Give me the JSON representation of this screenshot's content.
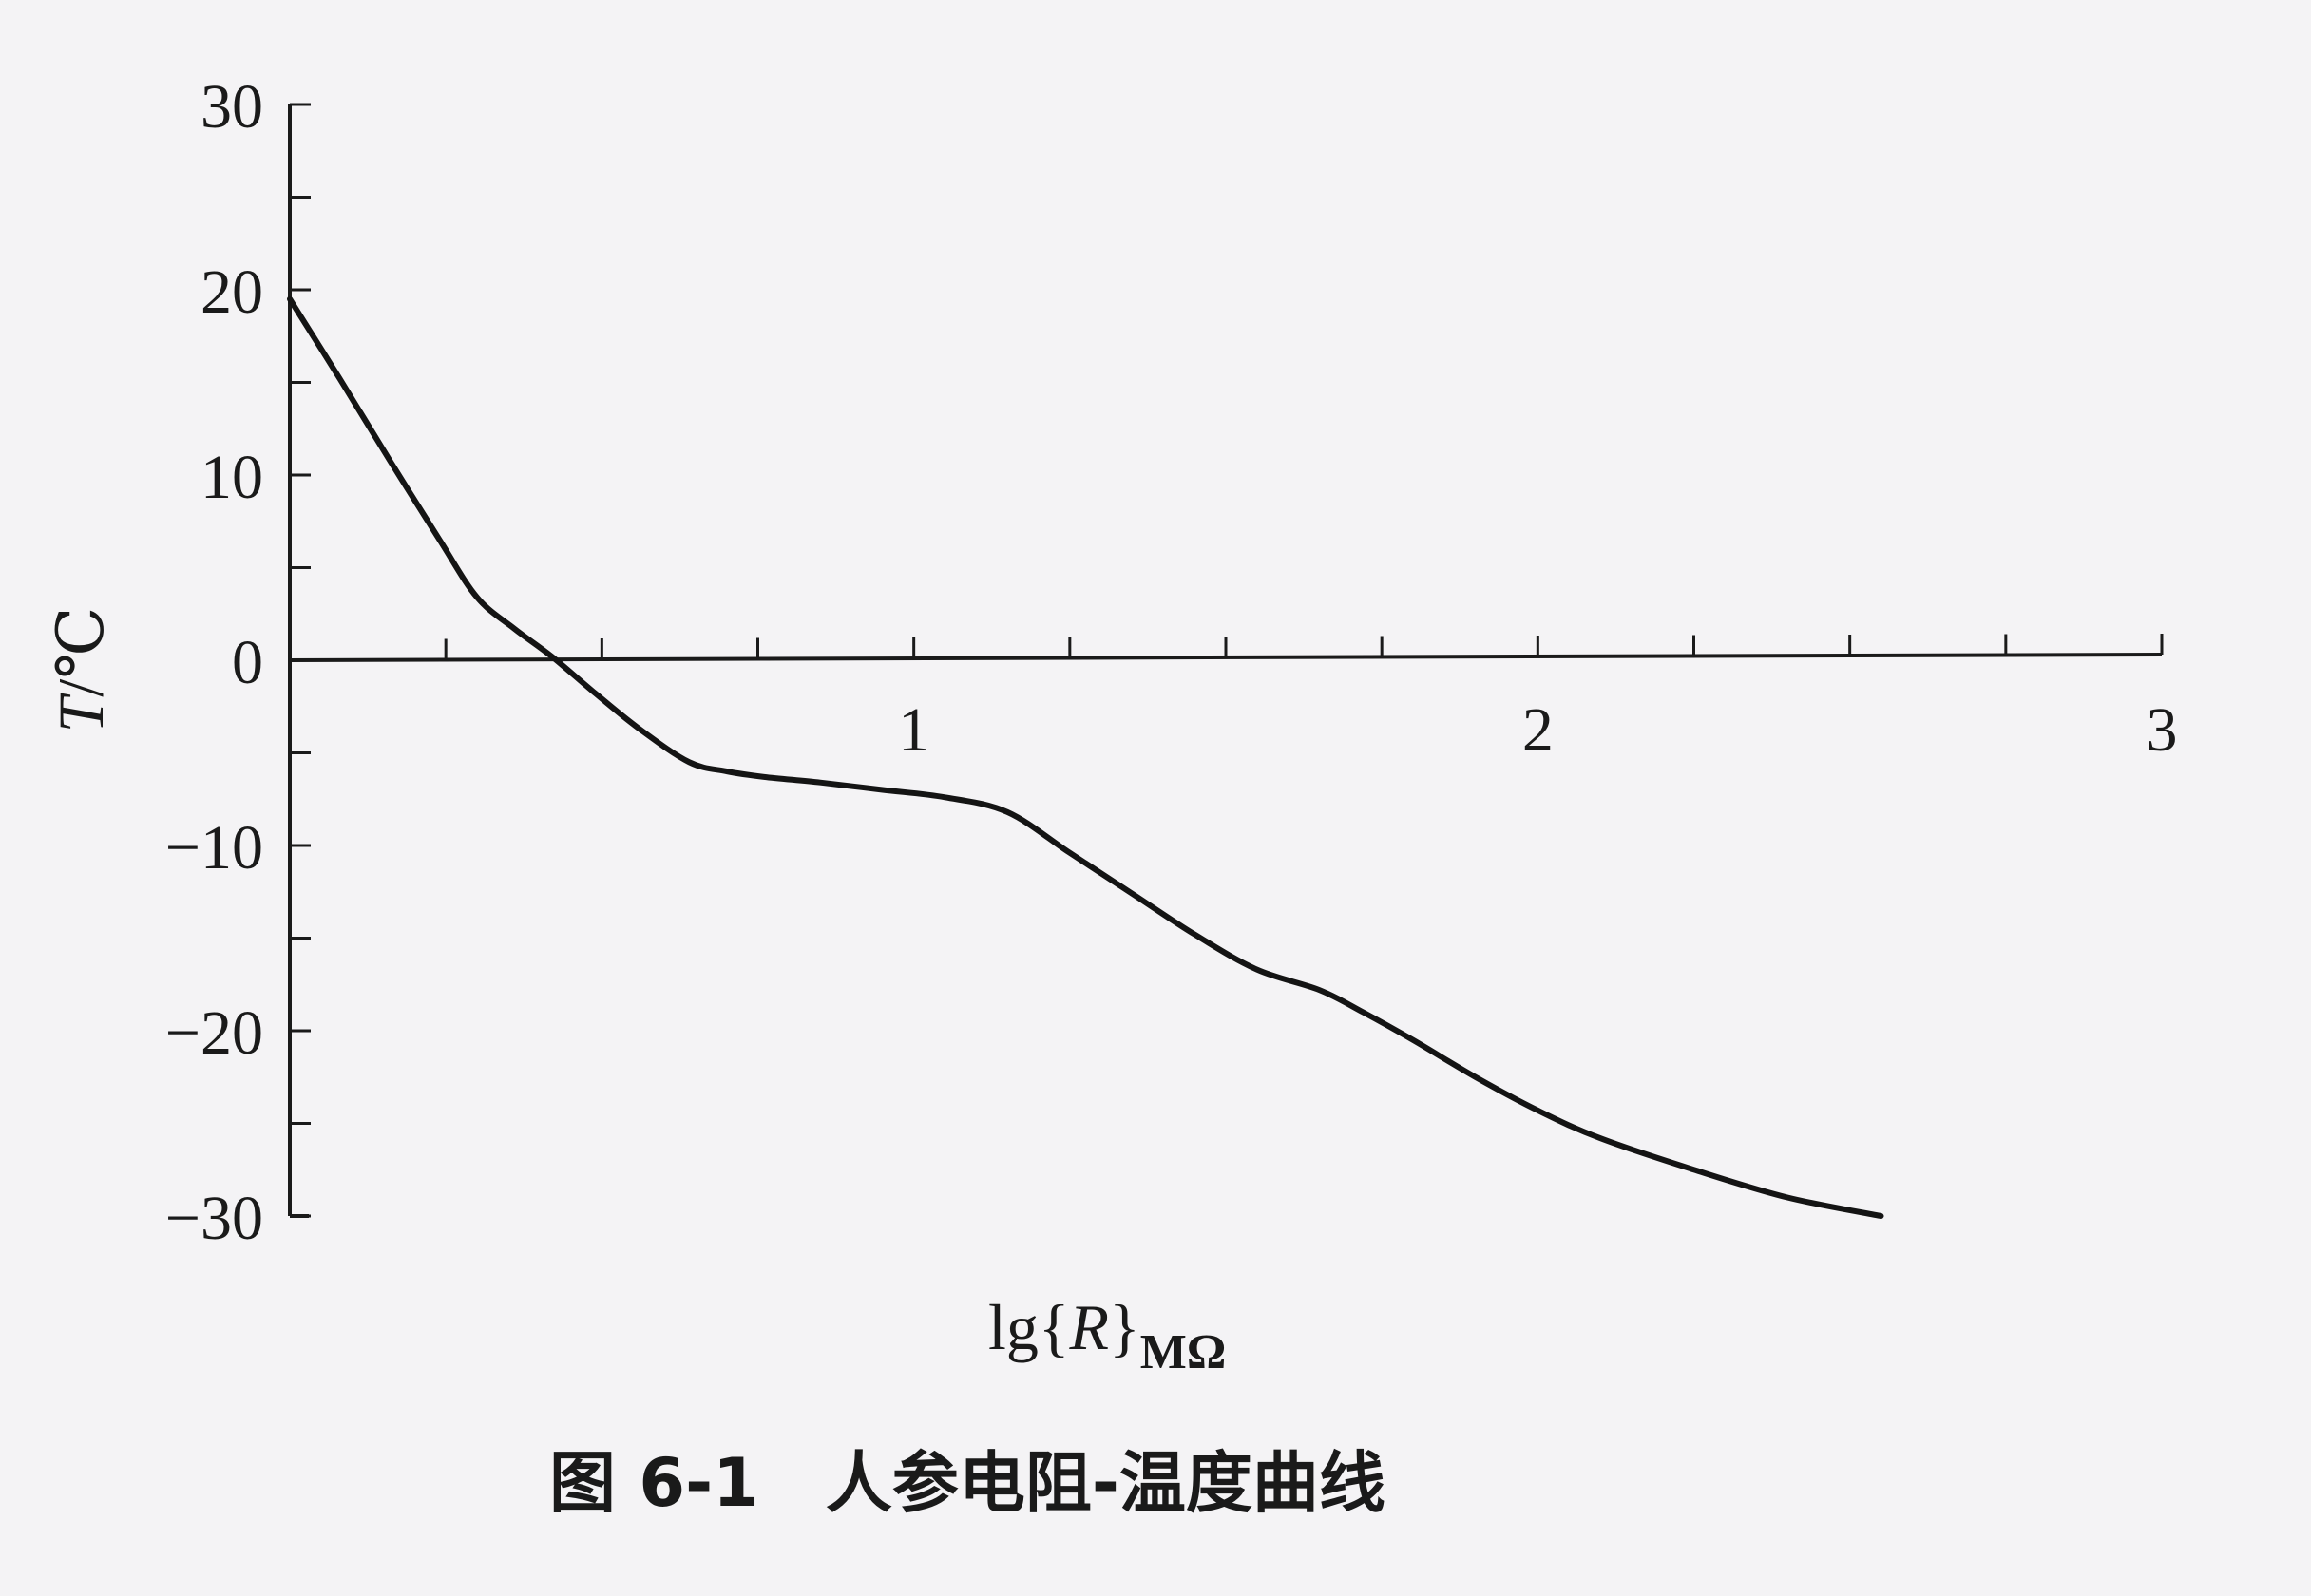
{
  "chart_data": {
    "type": "line",
    "title": "",
    "caption": "图 6-1　人参电阻-温度曲线",
    "xlabel": {
      "main": "lg{",
      "italic": "R",
      "close": "}",
      "sub": "MΩ"
    },
    "ylabel": {
      "italic": "T",
      "rest": "/℃"
    },
    "xlim": [
      0,
      3
    ],
    "ylim": [
      -30,
      30
    ],
    "x_ticks": [
      1,
      2,
      3
    ],
    "x_tick_labels": [
      "1",
      "2",
      "3"
    ],
    "x_minor_step": 0.25,
    "y_ticks": [
      30,
      20,
      10,
      0,
      -10,
      -20,
      -30
    ],
    "y_tick_labels": [
      "30",
      "20",
      "10",
      "0",
      "−10",
      "−20",
      "−30"
    ],
    "y_minor_step": 5,
    "grid": false,
    "series": [
      {
        "x": [
          0.0,
          0.08,
          0.16,
          0.24,
          0.3,
          0.36,
          0.42,
          0.49,
          0.56,
          0.64,
          0.7,
          0.76,
          0.85,
          0.95,
          1.05,
          1.15,
          1.25,
          1.35,
          1.45,
          1.55,
          1.65,
          1.72,
          1.8,
          1.9,
          2.0,
          2.1,
          2.25,
          2.4,
          2.55
        ],
        "y": [
          19.5,
          15.2,
          10.8,
          6.5,
          3.4,
          1.7,
          0.2,
          -1.8,
          -3.7,
          -5.5,
          -6.0,
          -6.3,
          -6.6,
          -7.0,
          -7.4,
          -8.2,
          -10.4,
          -12.6,
          -14.8,
          -16.7,
          -17.8,
          -19.0,
          -20.5,
          -22.5,
          -24.3,
          -25.8,
          -27.5,
          -29.0,
          -30.0
        ]
      }
    ],
    "colors": {
      "line": "#141414",
      "axis": "#1a1a1a",
      "background": "#f4f3f5"
    }
  }
}
